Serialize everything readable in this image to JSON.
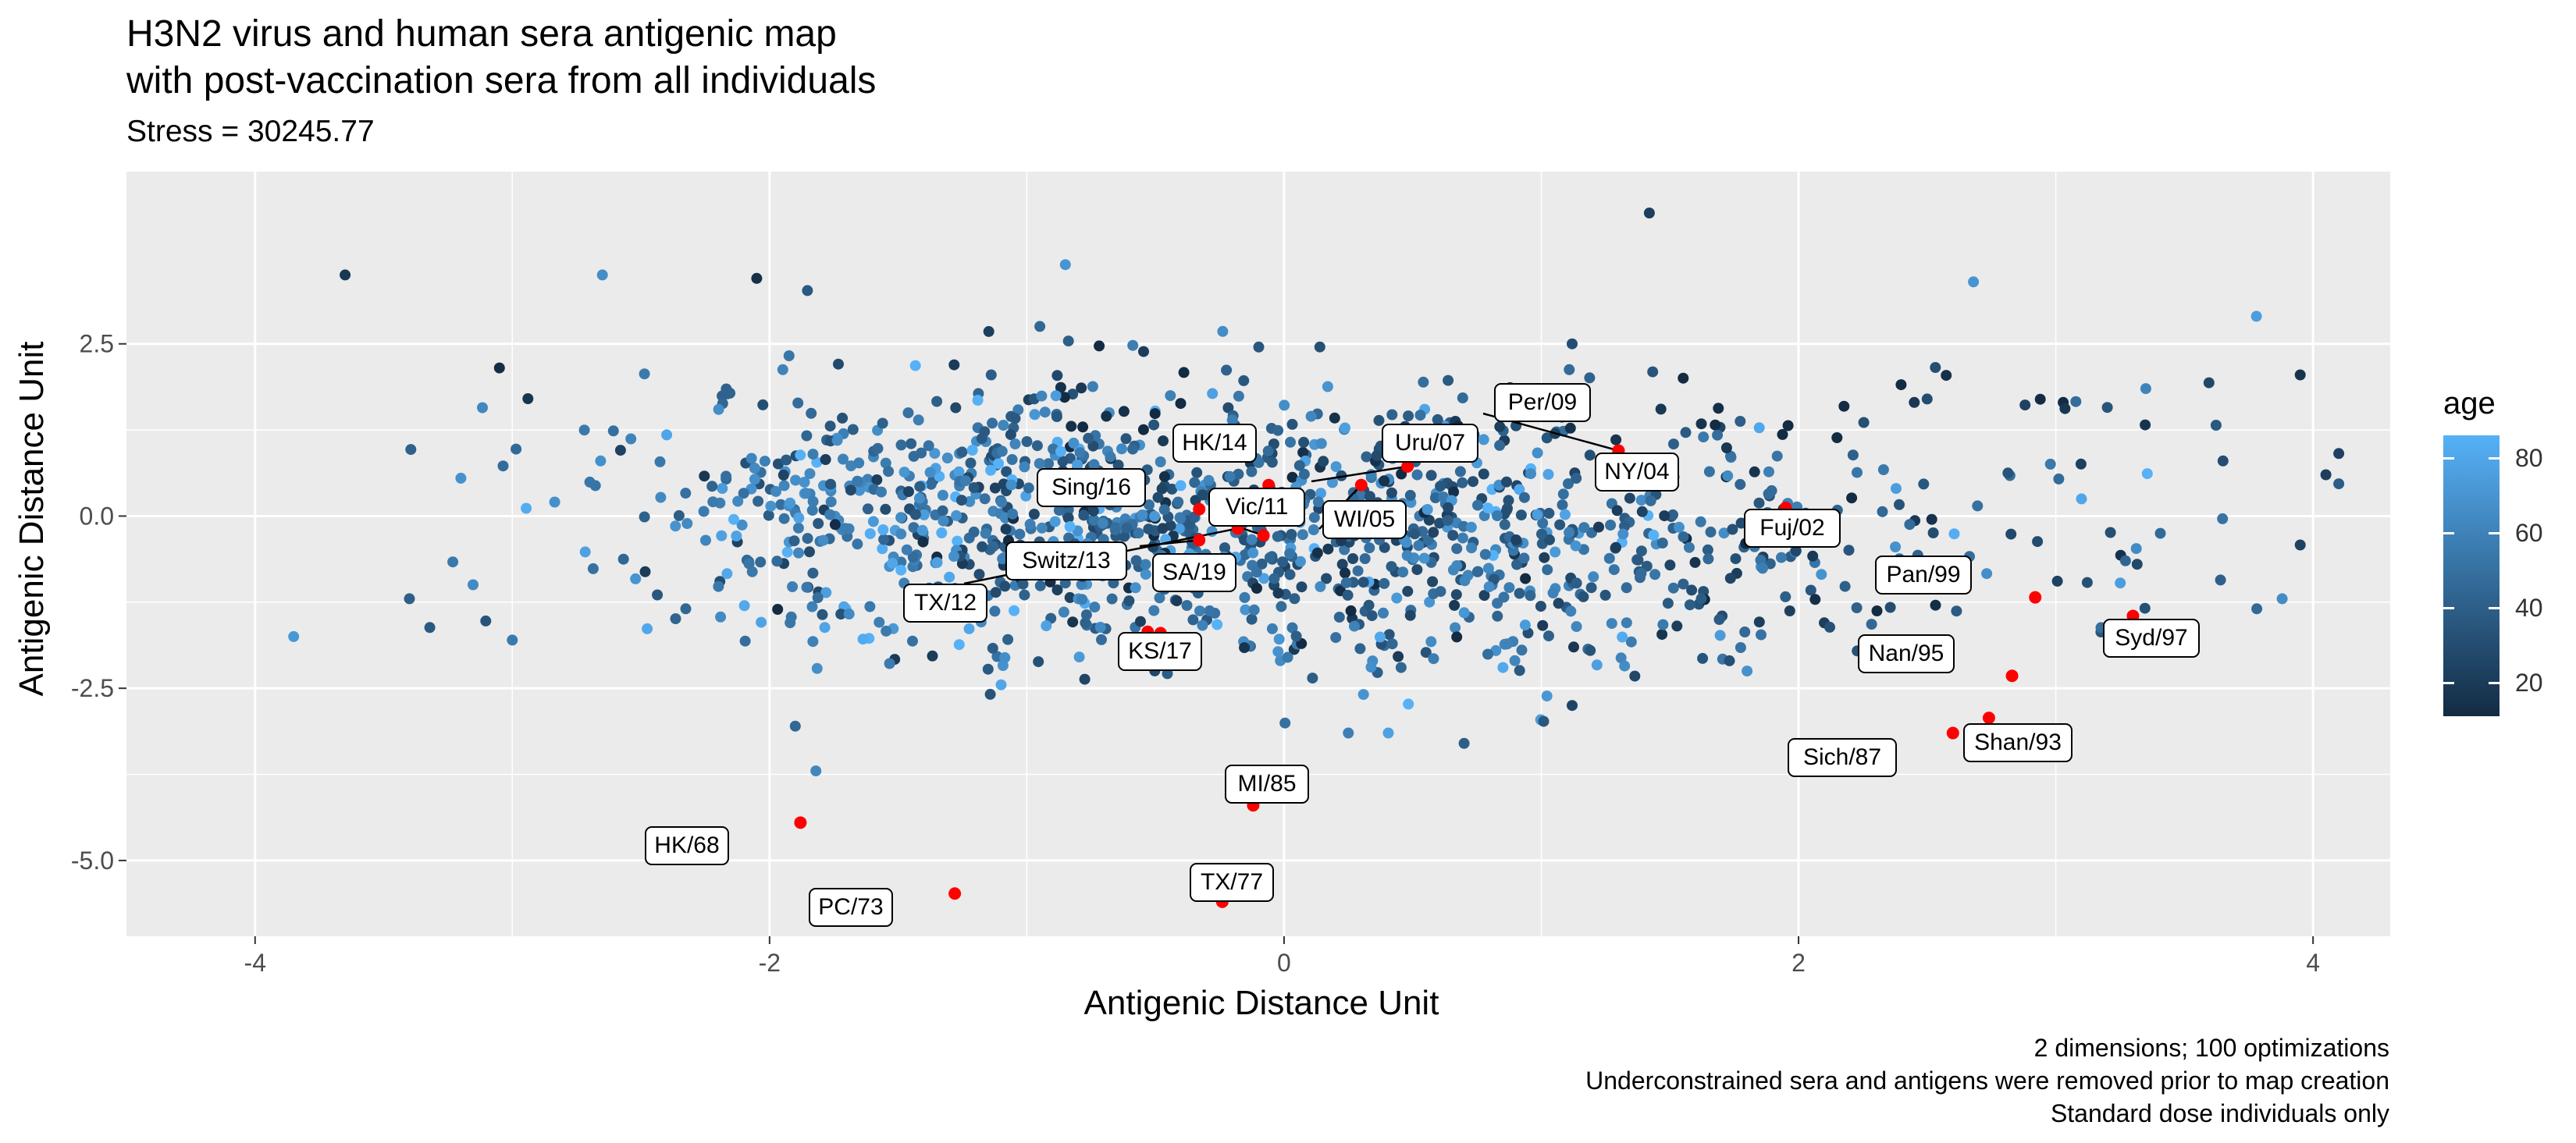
{
  "title_line1": "H3N2 virus and human sera antigenic map",
  "title_line2": "with post-vaccination sera from all individuals",
  "subtitle": "Stress = 30245.77",
  "caption": [
    "2 dimensions; 100 optimizations",
    "Underconstrained sera and antigens were removed prior to map creation",
    "Standard dose individuals only"
  ],
  "legend": {
    "title": "age",
    "ticks": [
      80,
      60,
      40,
      20
    ],
    "range": [
      11,
      86
    ],
    "low_color": "#132B43",
    "high_color": "#56B1F7"
  },
  "colors": {
    "panel": "#EBEBEB",
    "grid": "#FFFFFF",
    "antigen": "#FF0000"
  },
  "chart_data": {
    "type": "scatter",
    "title": "H3N2 virus and human sera antigenic map\nwith post-vaccination sera from all individuals",
    "subtitle": "Stress = 30245.77",
    "xlabel": "Antigenic Distance Unit",
    "ylabel": "Antigenic Distance Unit",
    "xlim": [
      -4.5,
      4.3
    ],
    "ylim": [
      -6.1,
      5.0
    ],
    "x_ticks": [
      -4,
      -2,
      0,
      2,
      4
    ],
    "y_ticks": [
      2.5,
      0.0,
      -2.5,
      -5.0
    ],
    "x_tick_labels": [
      "-4",
      "-2",
      "0",
      "2",
      "4"
    ],
    "y_tick_labels": [
      "2.5",
      "0.0",
      "-2.5",
      "-5.0"
    ],
    "grid": true,
    "legend_position": "right",
    "antigens": [
      {
        "label": "HK/68",
        "x": -1.88,
        "y": -4.45
      },
      {
        "label": "PC/73",
        "x": -1.28,
        "y": -5.48
      },
      {
        "label": "TX/77",
        "x": -0.24,
        "y": -5.6
      },
      {
        "label": "MI/85",
        "x": -0.12,
        "y": -4.2
      },
      {
        "label": "Sich/87",
        "x": 2.6,
        "y": -3.15
      },
      {
        "label": "Shan/93",
        "x": 2.74,
        "y": -2.93
      },
      {
        "label": "Nan/95",
        "x": 2.83,
        "y": -2.32
      },
      {
        "label": "Syd/97",
        "x": 3.3,
        "y": -1.45
      },
      {
        "label": "Pan/99",
        "x": 2.92,
        "y": -1.18
      },
      {
        "label": "Fuj/02",
        "x": 1.95,
        "y": 0.12
      },
      {
        "label": "NY/04",
        "x": 1.3,
        "y": 0.95
      },
      {
        "label": "WI/05",
        "x": 0.3,
        "y": 0.45
      },
      {
        "label": "Uru/07",
        "x": 0.48,
        "y": 0.72
      },
      {
        "label": "Per/09",
        "x": 1.3,
        "y": 0.95
      },
      {
        "label": "Vic/11",
        "x": -0.08,
        "y": -0.28
      },
      {
        "label": "TX/12",
        "x": -0.18,
        "y": -0.18
      },
      {
        "label": "Switz/13",
        "x": -0.33,
        "y": -0.35
      },
      {
        "label": "HK/14",
        "x": -0.06,
        "y": 0.45
      },
      {
        "label": "Sing/16",
        "x": -0.33,
        "y": 0.1
      },
      {
        "label": "SA/19",
        "x": -0.48,
        "y": -1.7
      },
      {
        "label": "KS/17",
        "x": -0.53,
        "y": -1.68
      }
    ],
    "sera_note": "approx. 1500 serum points colored by age; positions approximated from image",
    "sera": [
      {
        "x": -3.65,
        "y": 3.5,
        "age": 18
      },
      {
        "x": -2.65,
        "y": 3.5,
        "age": 66
      },
      {
        "x": -2.05,
        "y": 3.45,
        "age": 14
      },
      {
        "x": -0.85,
        "y": 3.65,
        "age": 70
      },
      {
        "x": 1.42,
        "y": 4.4,
        "age": 22
      },
      {
        "x": 2.68,
        "y": 3.4,
        "age": 70
      },
      {
        "x": 3.78,
        "y": 2.9,
        "age": 75
      },
      {
        "x": 3.95,
        "y": 2.05,
        "age": 16
      },
      {
        "x": 4.05,
        "y": 0.6,
        "age": 22
      },
      {
        "x": 3.95,
        "y": -0.42,
        "age": 24
      },
      {
        "x": 3.88,
        "y": -1.2,
        "age": 65
      },
      {
        "x": 3.65,
        "y": 0.8,
        "age": 30
      },
      {
        "x": 3.35,
        "y": 1.85,
        "age": 60
      },
      {
        "x": -3.85,
        "y": -1.75,
        "age": 72
      },
      {
        "x": -3.4,
        "y": -1.2,
        "age": 40
      },
      {
        "x": -3.0,
        "y": -1.8,
        "age": 55
      },
      {
        "x": -3.05,
        "y": 2.15,
        "age": 12
      },
      {
        "x": -3.2,
        "y": 0.55,
        "age": 68
      },
      {
        "x": -1.82,
        "y": -3.7,
        "age": 62
      },
      {
        "x": -1.9,
        "y": -3.05,
        "age": 45
      },
      {
        "x": -1.1,
        "y": -2.45,
        "age": 80
      },
      {
        "x": 0.25,
        "y": -3.15,
        "age": 58
      },
      {
        "x": 0.7,
        "y": -3.3,
        "age": 40
      },
      {
        "x": 1.12,
        "y": -2.75,
        "age": 25
      },
      {
        "x": 1.8,
        "y": -2.25,
        "age": 68
      },
      {
        "x": 2.1,
        "y": -1.55,
        "age": 22
      },
      {
        "x": 3.1,
        "y": 0.25,
        "age": 80
      },
      {
        "x": 2.5,
        "y": 1.7,
        "age": 30
      },
      {
        "x": 2.45,
        "y": 1.65,
        "age": 18
      },
      {
        "x": 1.12,
        "y": 2.5,
        "age": 30
      }
    ]
  }
}
